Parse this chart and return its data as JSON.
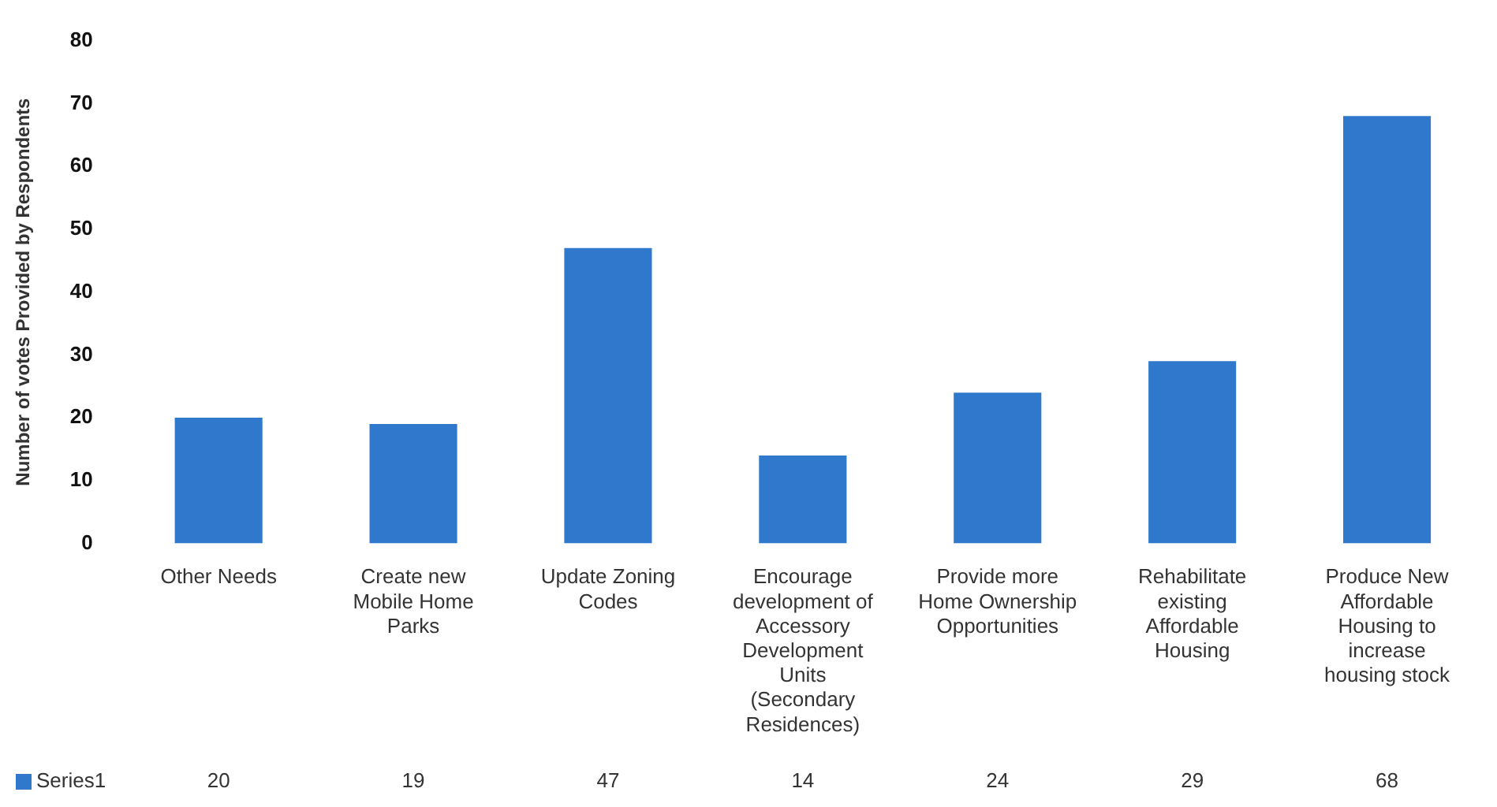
{
  "chart_data": {
    "type": "bar",
    "ylabel": "Number of votes Provided by Respondents",
    "categories": [
      "Other Needs",
      "Create new Mobile Home Parks",
      "Update Zoning Codes",
      "Encourage development of Accessory Development Units (Secondary Residences)",
      "Provide more Home Ownership Opportunities",
      "Rehabilitate existing Affordable Housing",
      "Produce New Affordable Housing to increase housing stock"
    ],
    "series": [
      {
        "name": "Series1",
        "color": "#2f78cc",
        "values": [
          20,
          19,
          47,
          14,
          24,
          29,
          68
        ]
      }
    ],
    "ylim": [
      0,
      80
    ],
    "yticks": [
      0,
      10,
      20,
      30,
      40,
      50,
      60,
      70,
      80
    ],
    "grid": false,
    "legend": "bottom left",
    "data_labels": true
  }
}
